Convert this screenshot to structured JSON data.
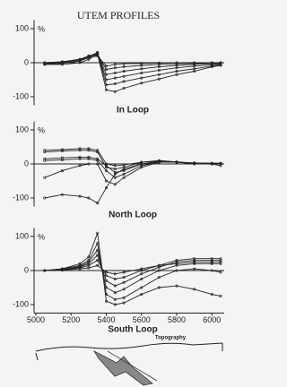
{
  "title": "UTEM PROFILES",
  "topography_label": "Topography",
  "chart_data": [
    {
      "type": "line",
      "title": "In Loop",
      "y_label": "%",
      "x": [
        5050,
        5150,
        5250,
        5300,
        5350,
        5400,
        5450,
        5500,
        5600,
        5700,
        5800,
        5900,
        6000,
        6050
      ],
      "xlim": [
        4990,
        6070
      ],
      "ylim": [
        -125,
        125
      ],
      "yticks": [
        -100,
        0,
        100
      ],
      "grid": false,
      "series": [
        {
          "color": "#222222",
          "values": [
            0,
            2,
            8,
            15,
            20,
            -10,
            -5,
            -3,
            -2,
            -1,
            0,
            0,
            0,
            0
          ]
        },
        {
          "color": "#222222",
          "values": [
            0,
            3,
            10,
            18,
            25,
            -20,
            -15,
            -12,
            -8,
            -5,
            -3,
            -2,
            -1,
            0
          ]
        },
        {
          "color": "#222222",
          "values": [
            -2,
            2,
            10,
            20,
            28,
            -35,
            -30,
            -25,
            -18,
            -12,
            -8,
            -5,
            -3,
            -2
          ]
        },
        {
          "color": "#222222",
          "values": [
            -3,
            0,
            8,
            18,
            30,
            -50,
            -45,
            -40,
            -30,
            -22,
            -15,
            -10,
            -6,
            -4
          ]
        },
        {
          "color": "#222222",
          "values": [
            -5,
            -2,
            5,
            15,
            30,
            -65,
            -62,
            -55,
            -45,
            -35,
            -25,
            -18,
            -10,
            -6
          ]
        },
        {
          "color": "#222222",
          "values": [
            -5,
            -5,
            0,
            10,
            25,
            -80,
            -85,
            -75,
            -60,
            -48,
            -35,
            -25,
            -12,
            -8
          ]
        }
      ]
    },
    {
      "type": "line",
      "title": "North Loop",
      "y_label": "%",
      "x": [
        5050,
        5150,
        5250,
        5300,
        5350,
        5400,
        5450,
        5500,
        5600,
        5700,
        5800,
        5900,
        6000,
        6050
      ],
      "xlim": [
        4990,
        6070
      ],
      "ylim": [
        -125,
        125
      ],
      "yticks": [
        -100,
        0,
        100
      ],
      "grid": false,
      "series": [
        {
          "color": "#222222",
          "values": [
            40,
            42,
            45,
            45,
            40,
            0,
            -5,
            -3,
            5,
            8,
            5,
            3,
            2,
            2
          ]
        },
        {
          "color": "#222222",
          "values": [
            35,
            38,
            40,
            40,
            35,
            -10,
            -15,
            -10,
            5,
            10,
            6,
            3,
            2,
            2
          ]
        },
        {
          "color": "#222222",
          "values": [
            15,
            18,
            20,
            20,
            15,
            -5,
            -25,
            -20,
            0,
            8,
            5,
            2,
            0,
            0
          ]
        },
        {
          "color": "#222222",
          "values": [
            10,
            12,
            15,
            15,
            10,
            -20,
            -40,
            -30,
            -5,
            5,
            5,
            2,
            0,
            0
          ]
        },
        {
          "color": "#222222",
          "values": [
            -40,
            -20,
            -5,
            0,
            0,
            -50,
            -60,
            -40,
            -10,
            5,
            5,
            2,
            0,
            0
          ]
        },
        {
          "color": "#222222",
          "values": [
            -100,
            -90,
            -95,
            -100,
            -115,
            -70,
            -30,
            -15,
            0,
            5,
            5,
            0,
            0,
            -5
          ]
        }
      ]
    },
    {
      "type": "line",
      "title": "South Loop",
      "y_label": "%",
      "x": [
        5050,
        5150,
        5250,
        5300,
        5350,
        5400,
        5450,
        5500,
        5600,
        5700,
        5800,
        5900,
        6000,
        6050
      ],
      "xlim": [
        4990,
        6070
      ],
      "xticks": [
        5000,
        5200,
        5400,
        5600,
        5800,
        6000
      ],
      "ylim": [
        -125,
        125
      ],
      "yticks": [
        -100,
        0,
        100
      ],
      "grid": false,
      "series": [
        {
          "color": "#222222",
          "values": [
            0,
            5,
            20,
            40,
            110,
            -90,
            -100,
            -95,
            -70,
            -50,
            -45,
            -55,
            -70,
            -75
          ]
        },
        {
          "color": "#222222",
          "values": [
            0,
            5,
            15,
            30,
            80,
            -70,
            -85,
            -80,
            -50,
            -20,
            0,
            5,
            0,
            -5
          ]
        },
        {
          "color": "#222222",
          "values": [
            0,
            3,
            12,
            25,
            60,
            -50,
            -65,
            -55,
            -25,
            0,
            15,
            20,
            20,
            20
          ]
        },
        {
          "color": "#222222",
          "values": [
            0,
            2,
            10,
            20,
            45,
            -30,
            -45,
            -35,
            -10,
            10,
            25,
            30,
            30,
            30
          ]
        },
        {
          "color": "#222222",
          "values": [
            0,
            2,
            8,
            15,
            30,
            -15,
            -25,
            -20,
            0,
            15,
            30,
            35,
            35,
            35
          ]
        },
        {
          "color": "#222222",
          "values": [
            0,
            1,
            5,
            8,
            15,
            -5,
            -10,
            -5,
            5,
            15,
            20,
            25,
            25,
            25
          ]
        }
      ]
    }
  ]
}
